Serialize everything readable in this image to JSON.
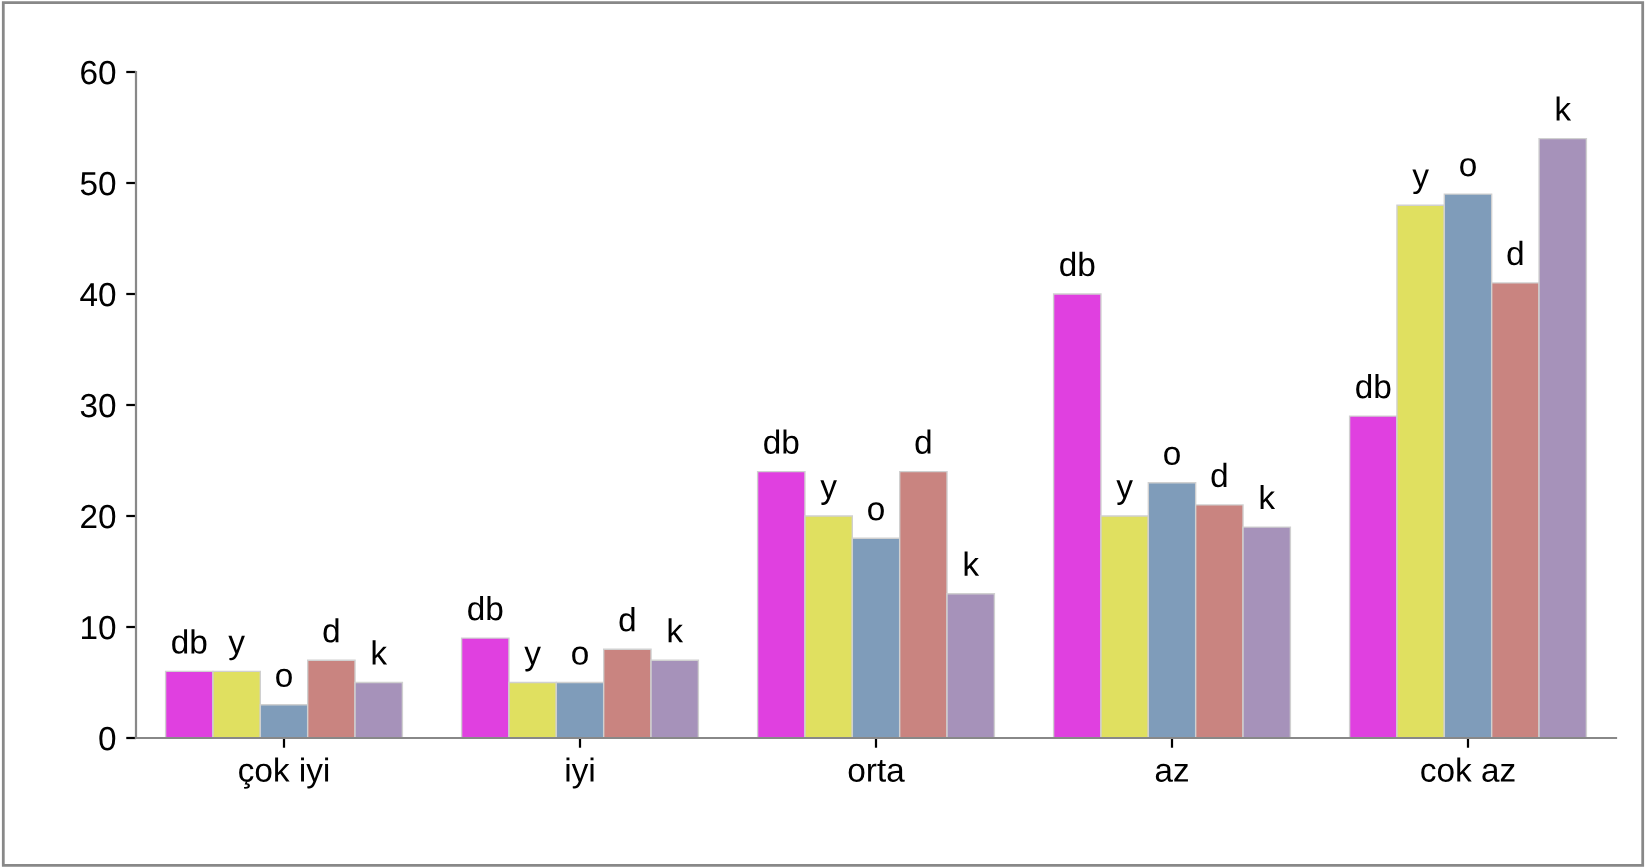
{
  "chart_data": {
    "type": "bar",
    "categories": [
      "çok iyi",
      "iyi",
      "orta",
      "az",
      "cok az"
    ],
    "series": [
      {
        "name": "db",
        "color": "#e040e0",
        "values": [
          6,
          9,
          24,
          40,
          29
        ]
      },
      {
        "name": "y",
        "color": "#e0e060",
        "values": [
          6,
          5,
          20,
          20,
          48
        ]
      },
      {
        "name": "o",
        "color": "#7f9cba",
        "values": [
          3,
          5,
          18,
          23,
          49
        ]
      },
      {
        "name": "d",
        "color": "#c98480",
        "values": [
          7,
          8,
          24,
          21,
          41
        ]
      },
      {
        "name": "k",
        "color": "#a692ba",
        "values": [
          5,
          7,
          13,
          19,
          54
        ]
      }
    ],
    "ylim": [
      0,
      60
    ],
    "yticks": [
      0,
      10,
      20,
      30,
      40,
      50,
      60
    ],
    "grid": false,
    "legend": false
  }
}
